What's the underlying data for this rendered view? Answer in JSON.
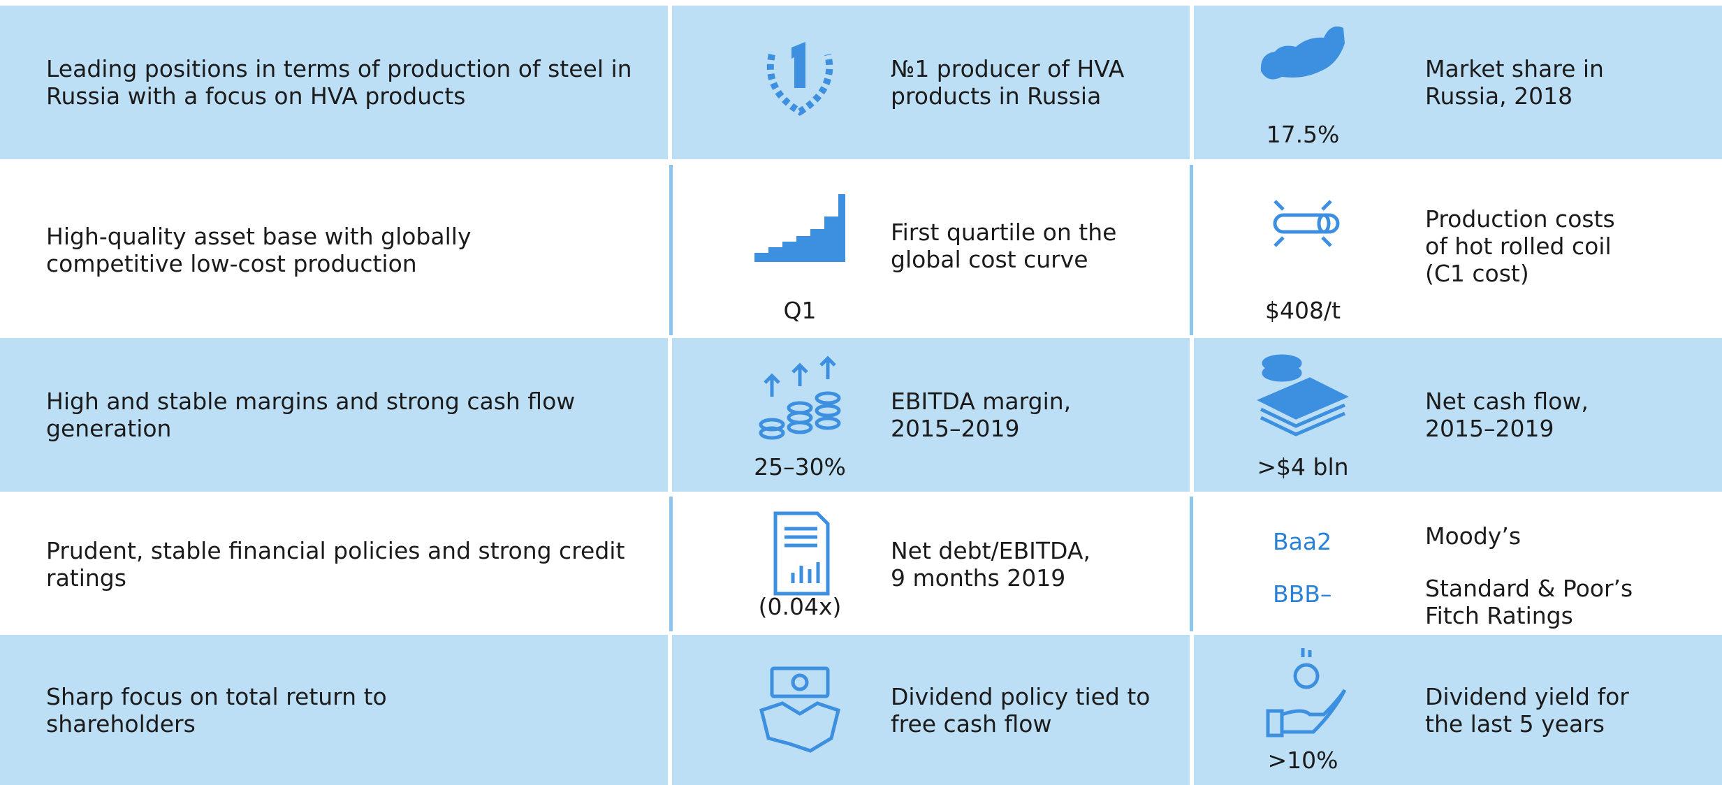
{
  "rows": [
    {
      "statement": [
        "Leading positions in terms of production of steel in",
        "Russia with a focus on HVA products"
      ],
      "metric1": {
        "label": [
          "№1 producer of HVA",
          "products in Russia"
        ]
      },
      "metric2": {
        "value": "17.5%",
        "label": [
          "Market share in",
          "Russia, 2018"
        ]
      }
    },
    {
      "statement": [
        "High-quality asset base with globally",
        "competitive low-cost production"
      ],
      "metric1": {
        "value": "Q1",
        "label": [
          "First quartile on the",
          "global cost curve"
        ]
      },
      "metric2": {
        "value": "$408/t",
        "label": [
          "Production costs",
          "of hot rolled coil",
          "(C1 cost)"
        ]
      }
    },
    {
      "statement": [
        "High and stable margins and strong cash flow",
        "generation"
      ],
      "metric1": {
        "value": "25–30%",
        "label": [
          "EBITDA margin,",
          "2015–2019"
        ]
      },
      "metric2": {
        "value": ">$4 bln",
        "label": [
          "Net cash flow,",
          "2015–2019"
        ]
      }
    },
    {
      "statement": [
        "Prudent, stable financial policies and strong credit",
        "ratings"
      ],
      "metric1": {
        "value": "(0.04x)",
        "label": [
          "Net debt/EBITDA,",
          "9 months 2019"
        ]
      },
      "metric2": {
        "ratings": [
          {
            "rating": "Baa2",
            "agency": [
              "Moody’s"
            ]
          },
          {
            "rating": "BBB–",
            "agency": [
              "Standard & Poor’s",
              "Fitch Ratings"
            ]
          }
        ]
      }
    },
    {
      "statement": [
        "Sharp focus on total return to",
        "shareholders"
      ],
      "metric1": {
        "label": [
          "Dividend policy tied to",
          "free cash flow"
        ]
      },
      "metric2": {
        "value": ">10%",
        "label": [
          "Dividend yield for",
          "the last 5 years"
        ]
      }
    }
  ]
}
